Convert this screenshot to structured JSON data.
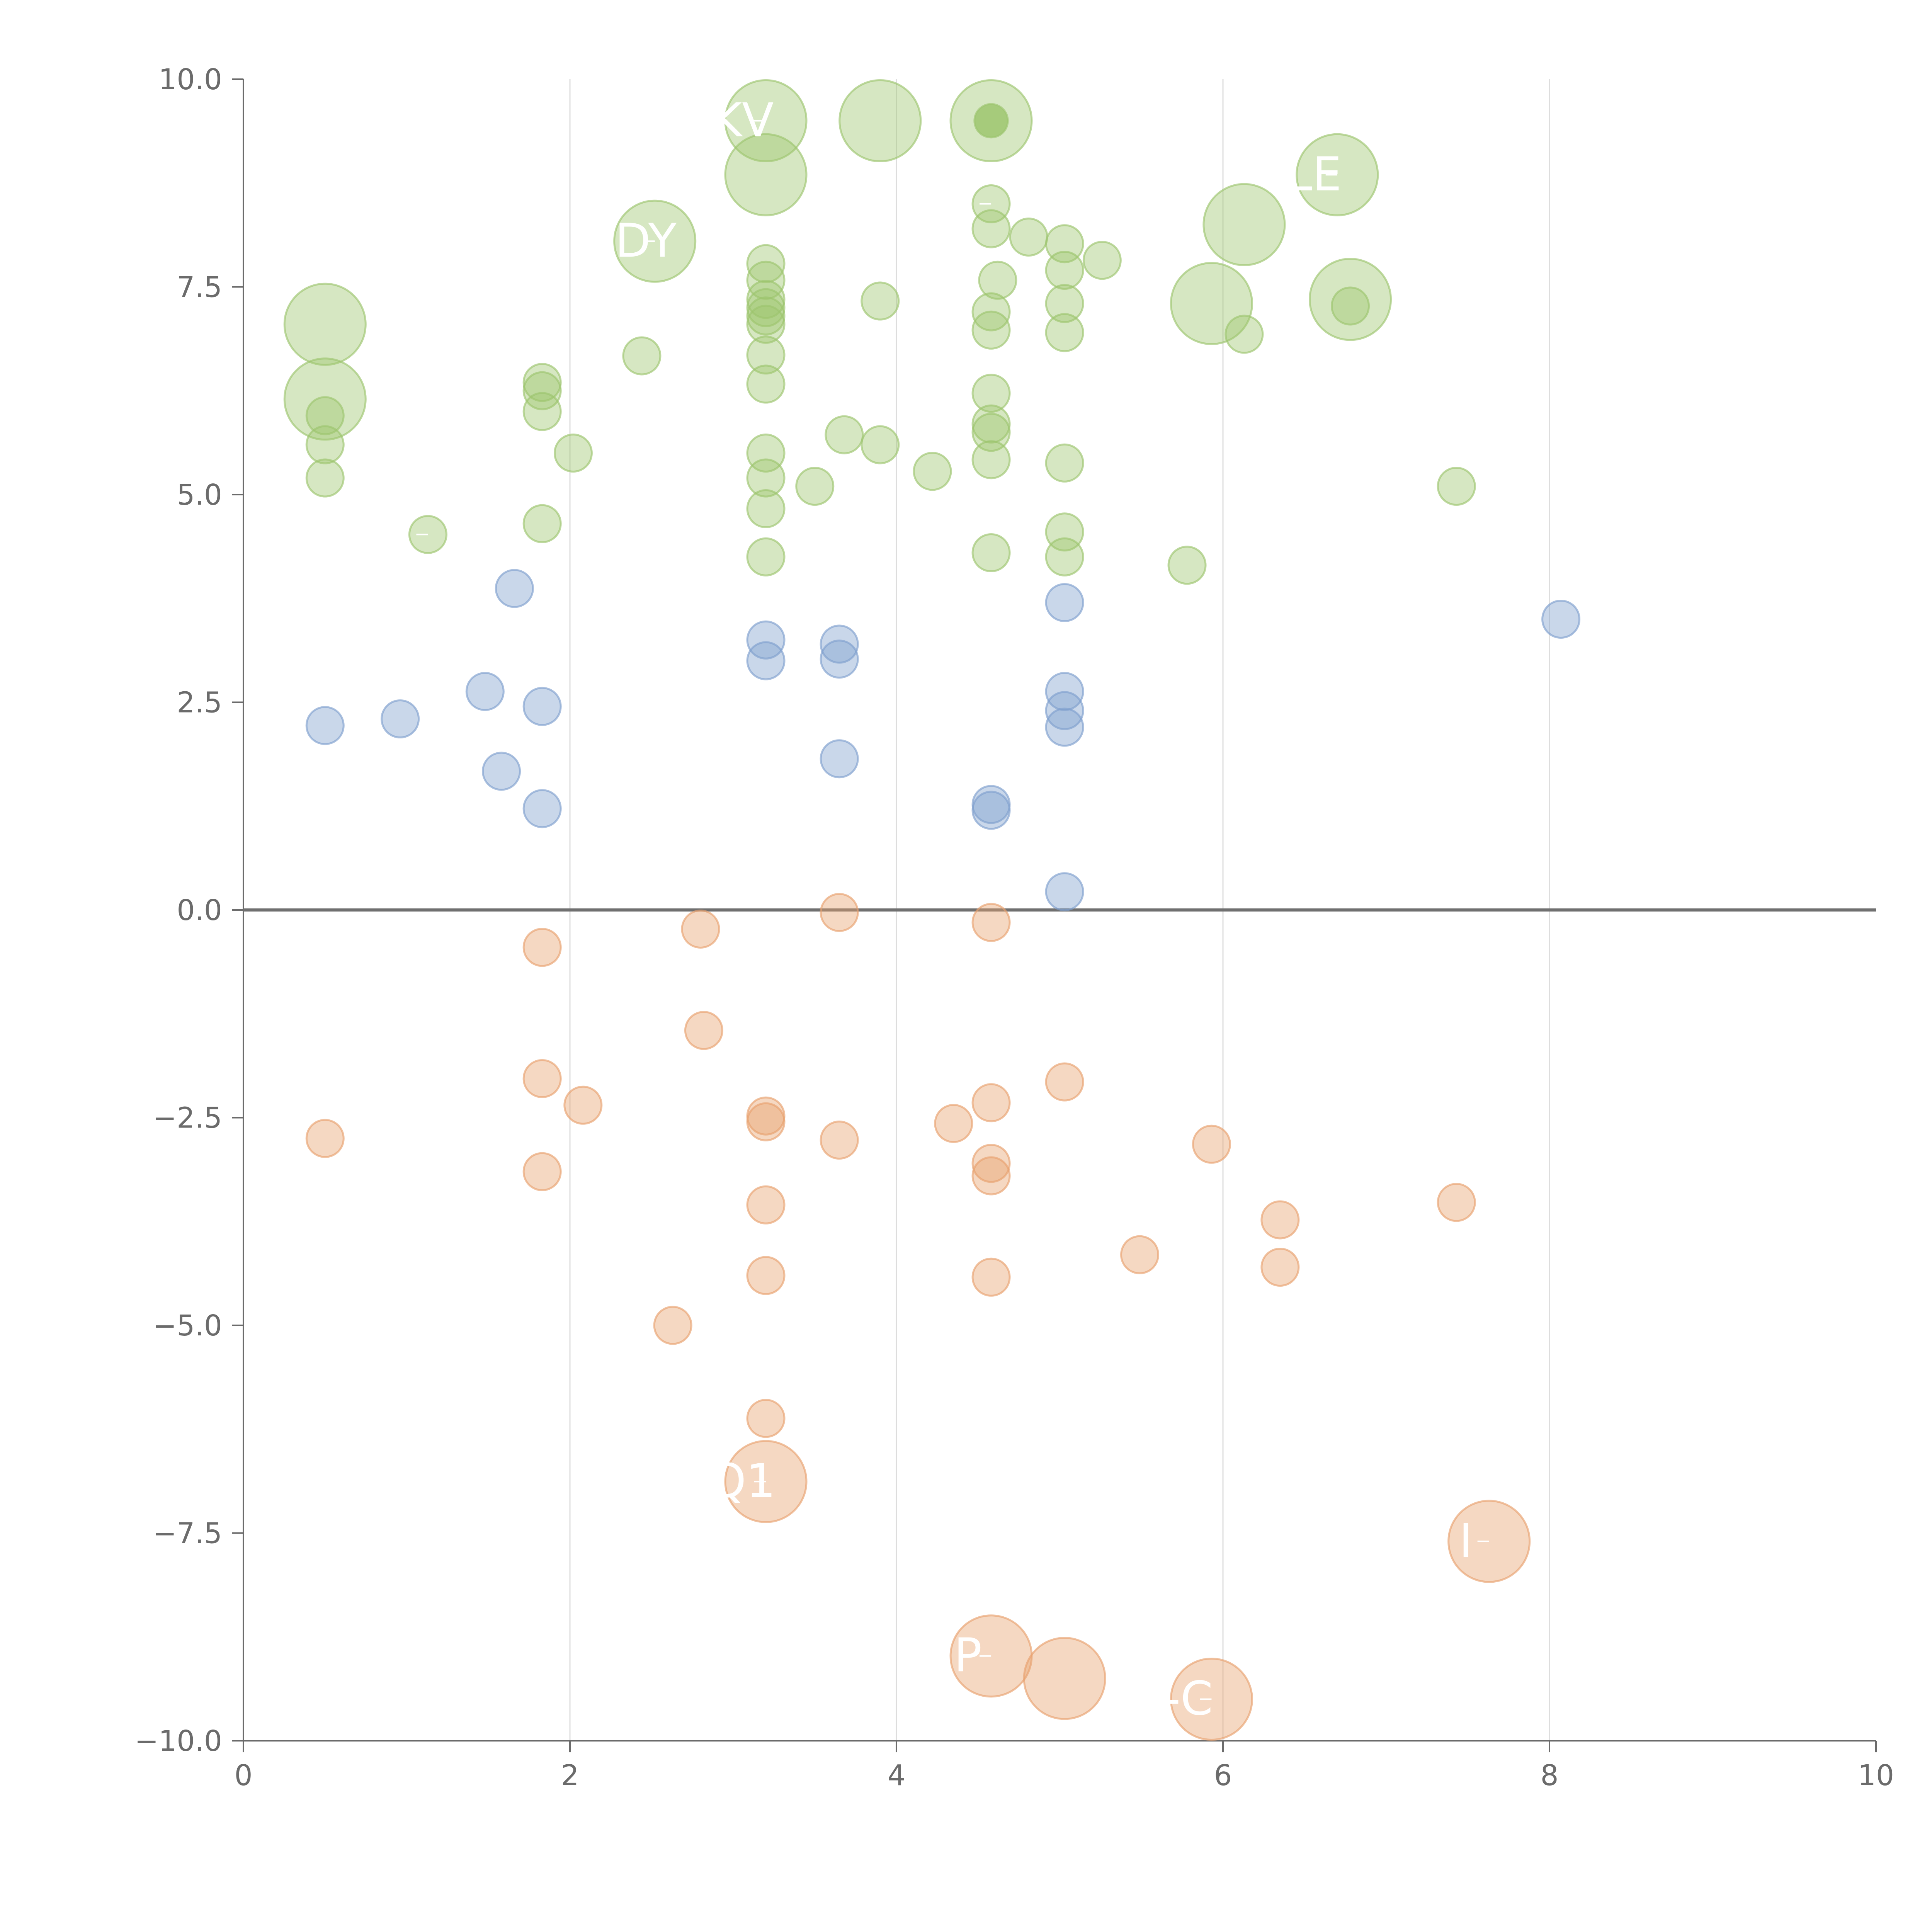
{
  "chart_data": {
    "type": "scatter",
    "title": "",
    "xlabel": "",
    "ylabel": "",
    "xlim": [
      0,
      10
    ],
    "ylim": [
      -10,
      10
    ],
    "xticks": [
      0,
      2,
      4,
      6,
      8,
      10
    ],
    "yticks": [
      -10,
      -7.5,
      -5,
      -2.5,
      0,
      2.5,
      5,
      7.5,
      10
    ],
    "x_tick_labels": [
      "0",
      "2",
      "4",
      "6",
      "8",
      "10"
    ],
    "y_tick_labels": [
      "−10.0",
      "−7.5",
      "−5.0",
      "−2.5",
      "0.0",
      "2.5",
      "5.0",
      "7.5",
      "10.0"
    ],
    "grid": "vertical",
    "legend": "none",
    "colors": {
      "high": "#9dc56e",
      "mid": "#7f9fce",
      "low": "#e8a26e",
      "axis": "#6b6b6b",
      "grid": "#dddddd",
      "zero_line": "#707070",
      "label": "#ffffff"
    },
    "series": [
      {
        "name": "high",
        "color": "#9dc56e",
        "points": [
          {
            "x": 0.5,
            "y": 7.05,
            "size": 2,
            "label": ""
          },
          {
            "x": 0.5,
            "y": 6.15,
            "size": 2,
            "label": ""
          },
          {
            "x": 0.5,
            "y": 5.95,
            "size": 1
          },
          {
            "x": 0.5,
            "y": 5.6,
            "size": 1
          },
          {
            "x": 0.5,
            "y": 5.2,
            "size": 1
          },
          {
            "x": 1.13,
            "y": 4.52,
            "size": 1,
            "label": "'"
          },
          {
            "x": 1.83,
            "y": 6.35,
            "size": 1
          },
          {
            "x": 1.83,
            "y": 6.25,
            "size": 1
          },
          {
            "x": 1.83,
            "y": 6.0,
            "size": 1
          },
          {
            "x": 1.83,
            "y": 4.65,
            "size": 1
          },
          {
            "x": 2.02,
            "y": 5.5,
            "size": 1
          },
          {
            "x": 2.44,
            "y": 6.67,
            "size": 1
          },
          {
            "x": 2.52,
            "y": 8.05,
            "size": 2,
            "label": "YDY"
          },
          {
            "x": 3.2,
            "y": 9.5,
            "size": 2,
            "label": "KV"
          },
          {
            "x": 3.2,
            "y": 8.85,
            "size": 2,
            "label": ""
          },
          {
            "x": 3.2,
            "y": 7.78,
            "size": 1
          },
          {
            "x": 3.2,
            "y": 7.58,
            "size": 1
          },
          {
            "x": 3.2,
            "y": 7.35,
            "size": 1
          },
          {
            "x": 3.2,
            "y": 7.25,
            "size": 1
          },
          {
            "x": 3.2,
            "y": 7.15,
            "size": 1
          },
          {
            "x": 3.2,
            "y": 7.05,
            "size": 1
          },
          {
            "x": 3.2,
            "y": 6.68,
            "size": 1
          },
          {
            "x": 3.2,
            "y": 6.33,
            "size": 1
          },
          {
            "x": 3.2,
            "y": 5.5,
            "size": 1
          },
          {
            "x": 3.2,
            "y": 5.2,
            "size": 1
          },
          {
            "x": 3.2,
            "y": 4.83,
            "size": 1
          },
          {
            "x": 3.2,
            "y": 4.25,
            "size": 1
          },
          {
            "x": 3.5,
            "y": 5.1,
            "size": 1
          },
          {
            "x": 3.68,
            "y": 5.72,
            "size": 1
          },
          {
            "x": 3.9,
            "y": 9.5,
            "size": 2,
            "label": ""
          },
          {
            "x": 3.9,
            "y": 7.33,
            "size": 1
          },
          {
            "x": 3.9,
            "y": 5.6,
            "size": 1
          },
          {
            "x": 4.22,
            "y": 5.28,
            "size": 1
          },
          {
            "x": 4.58,
            "y": 9.5,
            "size": 2,
            "label": ""
          },
          {
            "x": 4.58,
            "y": 9.5,
            "size": 0.9,
            "dark": true
          },
          {
            "x": 4.58,
            "y": 8.5,
            "size": 1,
            "label": "'"
          },
          {
            "x": 4.58,
            "y": 8.2,
            "size": 1
          },
          {
            "x": 4.58,
            "y": 7.2,
            "size": 1
          },
          {
            "x": 4.58,
            "y": 6.98,
            "size": 1
          },
          {
            "x": 4.58,
            "y": 6.22,
            "size": 1
          },
          {
            "x": 4.58,
            "y": 5.85,
            "size": 1
          },
          {
            "x": 4.58,
            "y": 5.75,
            "size": 1
          },
          {
            "x": 4.58,
            "y": 5.42,
            "size": 1
          },
          {
            "x": 4.58,
            "y": 4.3,
            "size": 1
          },
          {
            "x": 4.62,
            "y": 7.58,
            "size": 1
          },
          {
            "x": 4.81,
            "y": 8.1,
            "size": 1
          },
          {
            "x": 5.03,
            "y": 8.02,
            "size": 1
          },
          {
            "x": 5.03,
            "y": 7.7,
            "size": 1
          },
          {
            "x": 5.03,
            "y": 7.3,
            "size": 1
          },
          {
            "x": 5.03,
            "y": 6.95,
            "size": 1
          },
          {
            "x": 5.03,
            "y": 5.38,
            "size": 1
          },
          {
            "x": 5.03,
            "y": 4.55,
            "size": 1
          },
          {
            "x": 5.03,
            "y": 4.25,
            "size": 1
          },
          {
            "x": 5.26,
            "y": 7.82,
            "size": 1
          },
          {
            "x": 5.78,
            "y": 4.15,
            "size": 1
          },
          {
            "x": 5.93,
            "y": 7.3,
            "size": 2,
            "label": ""
          },
          {
            "x": 6.13,
            "y": 8.25,
            "size": 2,
            "label": ""
          },
          {
            "x": 6.13,
            "y": 6.93,
            "size": 1
          },
          {
            "x": 6.7,
            "y": 8.85,
            "size": 2,
            "label": "LE"
          },
          {
            "x": 6.78,
            "y": 7.35,
            "size": 2,
            "label": ""
          },
          {
            "x": 6.78,
            "y": 7.27,
            "size": 1
          },
          {
            "x": 7.43,
            "y": 5.1,
            "size": 1
          }
        ]
      },
      {
        "name": "mid",
        "color": "#7f9fce",
        "points": [
          {
            "x": 0.5,
            "y": 2.22,
            "size": 1
          },
          {
            "x": 0.96,
            "y": 2.3,
            "size": 1
          },
          {
            "x": 1.48,
            "y": 2.63,
            "size": 1
          },
          {
            "x": 1.58,
            "y": 1.67,
            "size": 1
          },
          {
            "x": 1.66,
            "y": 3.87,
            "size": 1
          },
          {
            "x": 1.83,
            "y": 2.45,
            "size": 1
          },
          {
            "x": 1.83,
            "y": 1.22,
            "size": 1
          },
          {
            "x": 3.2,
            "y": 3.25,
            "size": 1
          },
          {
            "x": 3.2,
            "y": 3.0,
            "size": 1
          },
          {
            "x": 3.65,
            "y": 3.2,
            "size": 1
          },
          {
            "x": 3.65,
            "y": 3.02,
            "size": 1
          },
          {
            "x": 3.65,
            "y": 1.82,
            "size": 1
          },
          {
            "x": 4.58,
            "y": 1.27,
            "size": 1
          },
          {
            "x": 4.58,
            "y": 1.2,
            "size": 1
          },
          {
            "x": 5.03,
            "y": 3.7,
            "size": 1
          },
          {
            "x": 5.03,
            "y": 2.63,
            "size": 1
          },
          {
            "x": 5.03,
            "y": 2.4,
            "size": 1
          },
          {
            "x": 5.03,
            "y": 2.2,
            "size": 1
          },
          {
            "x": 5.03,
            "y": 0.22,
            "size": 1
          },
          {
            "x": 8.07,
            "y": 3.5,
            "size": 1
          }
        ]
      },
      {
        "name": "low",
        "color": "#e8a26e",
        "points": [
          {
            "x": 0.5,
            "y": -2.75,
            "size": 1
          },
          {
            "x": 1.83,
            "y": -0.45,
            "size": 1
          },
          {
            "x": 1.83,
            "y": -2.03,
            "size": 1
          },
          {
            "x": 1.83,
            "y": -3.15,
            "size": 1
          },
          {
            "x": 2.08,
            "y": -2.35,
            "size": 1
          },
          {
            "x": 2.63,
            "y": -5.0,
            "size": 1
          },
          {
            "x": 2.8,
            "y": -0.23,
            "size": 1
          },
          {
            "x": 2.82,
            "y": -1.45,
            "size": 1
          },
          {
            "x": 3.2,
            "y": -2.48,
            "size": 1
          },
          {
            "x": 3.2,
            "y": -2.55,
            "size": 1
          },
          {
            "x": 3.2,
            "y": -3.55,
            "size": 1
          },
          {
            "x": 3.2,
            "y": -4.4,
            "size": 1
          },
          {
            "x": 3.2,
            "y": -6.12,
            "size": 1
          },
          {
            "x": 3.2,
            "y": -6.88,
            "size": 2,
            "label": "Q1"
          },
          {
            "x": 3.65,
            "y": -0.03,
            "size": 1
          },
          {
            "x": 3.65,
            "y": -2.77,
            "size": 1
          },
          {
            "x": 4.35,
            "y": -2.57,
            "size": 1
          },
          {
            "x": 4.58,
            "y": -0.15,
            "size": 1
          },
          {
            "x": 4.58,
            "y": -2.32,
            "size": 1
          },
          {
            "x": 4.58,
            "y": -3.05,
            "size": 1
          },
          {
            "x": 4.58,
            "y": -3.2,
            "size": 1
          },
          {
            "x": 4.58,
            "y": -4.42,
            "size": 1
          },
          {
            "x": 4.58,
            "y": -8.98,
            "size": 2,
            "label": "P"
          },
          {
            "x": 5.03,
            "y": -2.07,
            "size": 1
          },
          {
            "x": 5.03,
            "y": -9.25,
            "size": 2,
            "label": ""
          },
          {
            "x": 5.49,
            "y": -4.15,
            "size": 1
          },
          {
            "x": 5.93,
            "y": -2.82,
            "size": 1
          },
          {
            "x": 5.93,
            "y": -9.5,
            "size": 2,
            "label": "-C"
          },
          {
            "x": 6.35,
            "y": -3.73,
            "size": 1
          },
          {
            "x": 6.35,
            "y": -4.3,
            "size": 1
          },
          {
            "x": 7.43,
            "y": -3.52,
            "size": 1
          },
          {
            "x": 7.63,
            "y": -7.6,
            "size": 2,
            "label": "I"
          }
        ]
      }
    ]
  }
}
